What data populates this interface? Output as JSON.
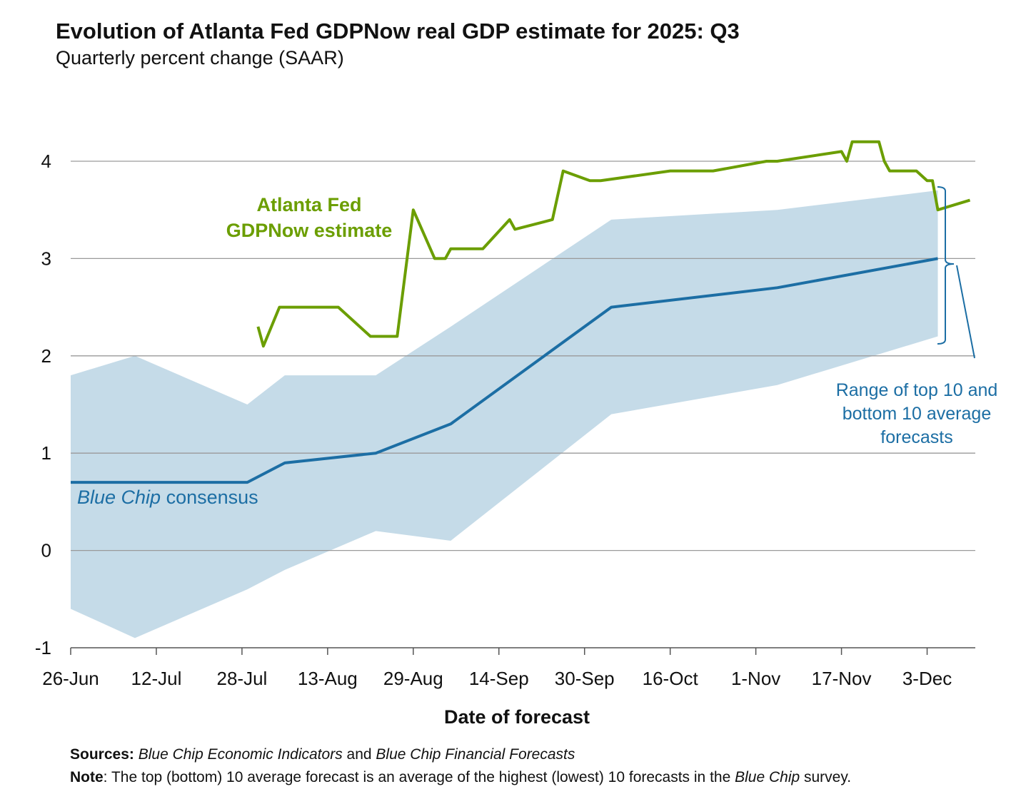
{
  "chart_data": {
    "type": "line",
    "title": "Evolution of Atlanta Fed GDPNow real GDP estimate for 2025: Q3",
    "subtitle": "Quarterly percent change (SAAR)",
    "xlabel": "Date of forecast",
    "ylabel": "",
    "ylim": [
      -1,
      4
    ],
    "yticks": [
      "-1",
      "0",
      "1",
      "2",
      "3",
      "4"
    ],
    "xticks": [
      {
        "label": "26-Jun",
        "date": "2025-06-26"
      },
      {
        "label": "12-Jul",
        "date": "2025-07-12"
      },
      {
        "label": "28-Jul",
        "date": "2025-07-28"
      },
      {
        "label": "13-Aug",
        "date": "2025-08-13"
      },
      {
        "label": "29-Aug",
        "date": "2025-08-29"
      },
      {
        "label": "14-Sep",
        "date": "2025-09-14"
      },
      {
        "label": "30-Sep",
        "date": "2025-09-30"
      },
      {
        "label": "16-Oct",
        "date": "2025-10-16"
      },
      {
        "label": "1-Nov",
        "date": "2025-11-01"
      },
      {
        "label": "17-Nov",
        "date": "2025-11-17"
      },
      {
        "label": "3-Dec",
        "date": "2025-12-03"
      }
    ],
    "xlim": [
      "2025-06-26",
      "2025-12-12"
    ],
    "grid": true,
    "series": [
      {
        "name": "Atlanta Fed GDPNow estimate",
        "color": "#6b9e00",
        "points": [
          [
            "2025-07-31",
            2.3
          ],
          [
            "2025-08-01",
            2.1
          ],
          [
            "2025-08-04",
            2.5
          ],
          [
            "2025-08-15",
            2.5
          ],
          [
            "2025-08-21",
            2.2
          ],
          [
            "2025-08-26",
            2.2
          ],
          [
            "2025-08-29",
            3.5
          ],
          [
            "2025-09-02",
            3.0
          ],
          [
            "2025-09-04",
            3.0
          ],
          [
            "2025-09-05",
            3.1
          ],
          [
            "2025-09-11",
            3.1
          ],
          [
            "2025-09-16",
            3.4
          ],
          [
            "2025-09-17",
            3.3
          ],
          [
            "2025-09-24",
            3.4
          ],
          [
            "2025-09-26",
            3.9
          ],
          [
            "2025-10-01",
            3.8
          ],
          [
            "2025-10-03",
            3.8
          ],
          [
            "2025-10-16",
            3.9
          ],
          [
            "2025-10-24",
            3.9
          ],
          [
            "2025-11-03",
            4.0
          ],
          [
            "2025-11-05",
            4.0
          ],
          [
            "2025-11-17",
            4.1
          ],
          [
            "2025-11-18",
            4.0
          ],
          [
            "2025-11-19",
            4.2
          ],
          [
            "2025-11-24",
            4.2
          ],
          [
            "2025-11-25",
            4.0
          ],
          [
            "2025-11-26",
            3.9
          ],
          [
            "2025-12-01",
            3.9
          ],
          [
            "2025-12-03",
            3.8
          ],
          [
            "2025-12-04",
            3.8
          ],
          [
            "2025-12-05",
            3.5
          ],
          [
            "2025-12-11",
            3.6
          ]
        ]
      },
      {
        "name": "Blue Chip consensus",
        "color": "#1c6ea4",
        "points": [
          [
            "2025-06-26",
            0.7
          ],
          [
            "2025-07-29",
            0.7
          ],
          [
            "2025-08-05",
            0.9
          ],
          [
            "2025-08-22",
            1.0
          ],
          [
            "2025-09-05",
            1.3
          ],
          [
            "2025-10-05",
            2.5
          ],
          [
            "2025-11-05",
            2.7
          ],
          [
            "2025-12-05",
            3.0
          ]
        ]
      }
    ],
    "band": {
      "name": "Range of top 10 and bottom 10 average forecasts",
      "color": "#c5dbe8",
      "dates": [
        "2025-06-26",
        "2025-07-08",
        "2025-07-29",
        "2025-08-05",
        "2025-08-22",
        "2025-09-05",
        "2025-10-05",
        "2025-11-05",
        "2025-12-05"
      ],
      "top": [
        1.8,
        2.0,
        1.5,
        1.8,
        1.8,
        2.3,
        3.4,
        3.5,
        3.7
      ],
      "bottom": [
        -0.6,
        -0.9,
        -0.4,
        -0.2,
        0.2,
        0.1,
        1.4,
        1.7,
        2.2
      ]
    },
    "annotations": {
      "gdpnow_line1": "Atlanta Fed",
      "gdpnow_line2": "GDPNow estimate",
      "bluechip_italic": "Blue Chip",
      "bluechip_rest": " consensus",
      "range_line1": "Range of top 10 and",
      "range_line2": "bottom 10 average",
      "range_line3": "forecasts"
    },
    "footer": {
      "sources_label": "Sources:",
      "sources_italic1": "Blue Chip Economic Indicators",
      "sources_and": " and ",
      "sources_italic2": "Blue Chip Financial Forecasts",
      "note_label": "Note",
      "note_text1": ": The top (bottom) 10 average forecast is an average of the highest (lowest) 10 forecasts in the ",
      "note_italic": "Blue Chip",
      "note_text2": " survey."
    }
  }
}
